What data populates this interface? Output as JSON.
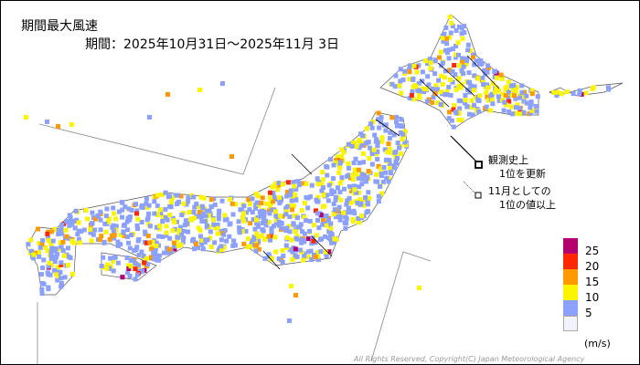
{
  "title": "期間最大風速",
  "period": "期間：2025年10月31日～2025年11月 3日",
  "notes": {
    "record_high": [
      "観測史上",
      "1位を更新"
    ],
    "november_high": [
      "11月としての",
      "1位の値以上"
    ]
  },
  "legend": {
    "unit": "(m/s)",
    "bins": [
      {
        "label": "25",
        "color": "#b4006e"
      },
      {
        "label": "20",
        "color": "#ff2800"
      },
      {
        "label": "15",
        "color": "#ff9900"
      },
      {
        "label": "10",
        "color": "#faf500"
      },
      {
        "label": "5",
        "color": "#8ca0ff"
      },
      {
        "label": "",
        "color": "#f2f2fa"
      }
    ]
  },
  "copyright": "All Rights Reserved, Copyright(C) Japan Meteorological Agency"
}
